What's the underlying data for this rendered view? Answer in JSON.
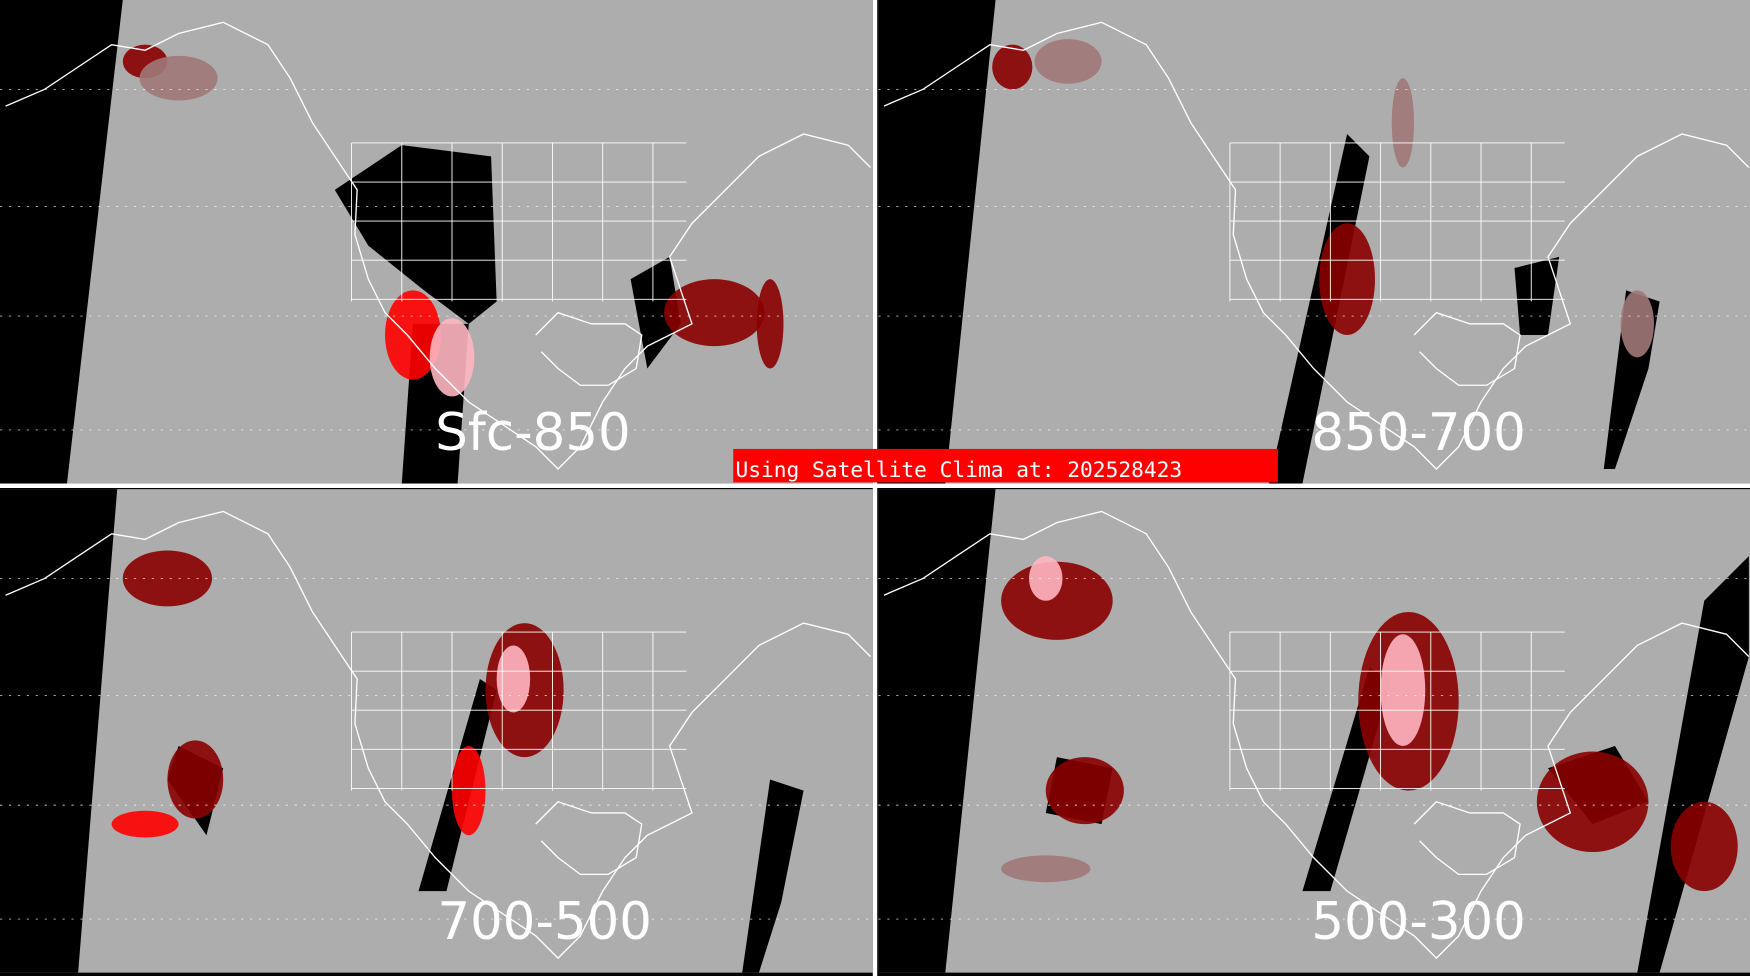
{
  "colors": {
    "background": "#adadad",
    "no_data": "#000000",
    "outline": "#ffffff",
    "low": "#a07878",
    "mid": "#8b0000",
    "high": "#ff0000",
    "highest": "#ffb6c1",
    "banner": "#ff0000"
  },
  "banner": {
    "text": "Using Satellite Clima at: 202528423"
  },
  "panels": [
    {
      "label": "Sfc-850"
    },
    {
      "label": "850-700"
    },
    {
      "label": "700-500"
    },
    {
      "label": "500-300"
    }
  ]
}
